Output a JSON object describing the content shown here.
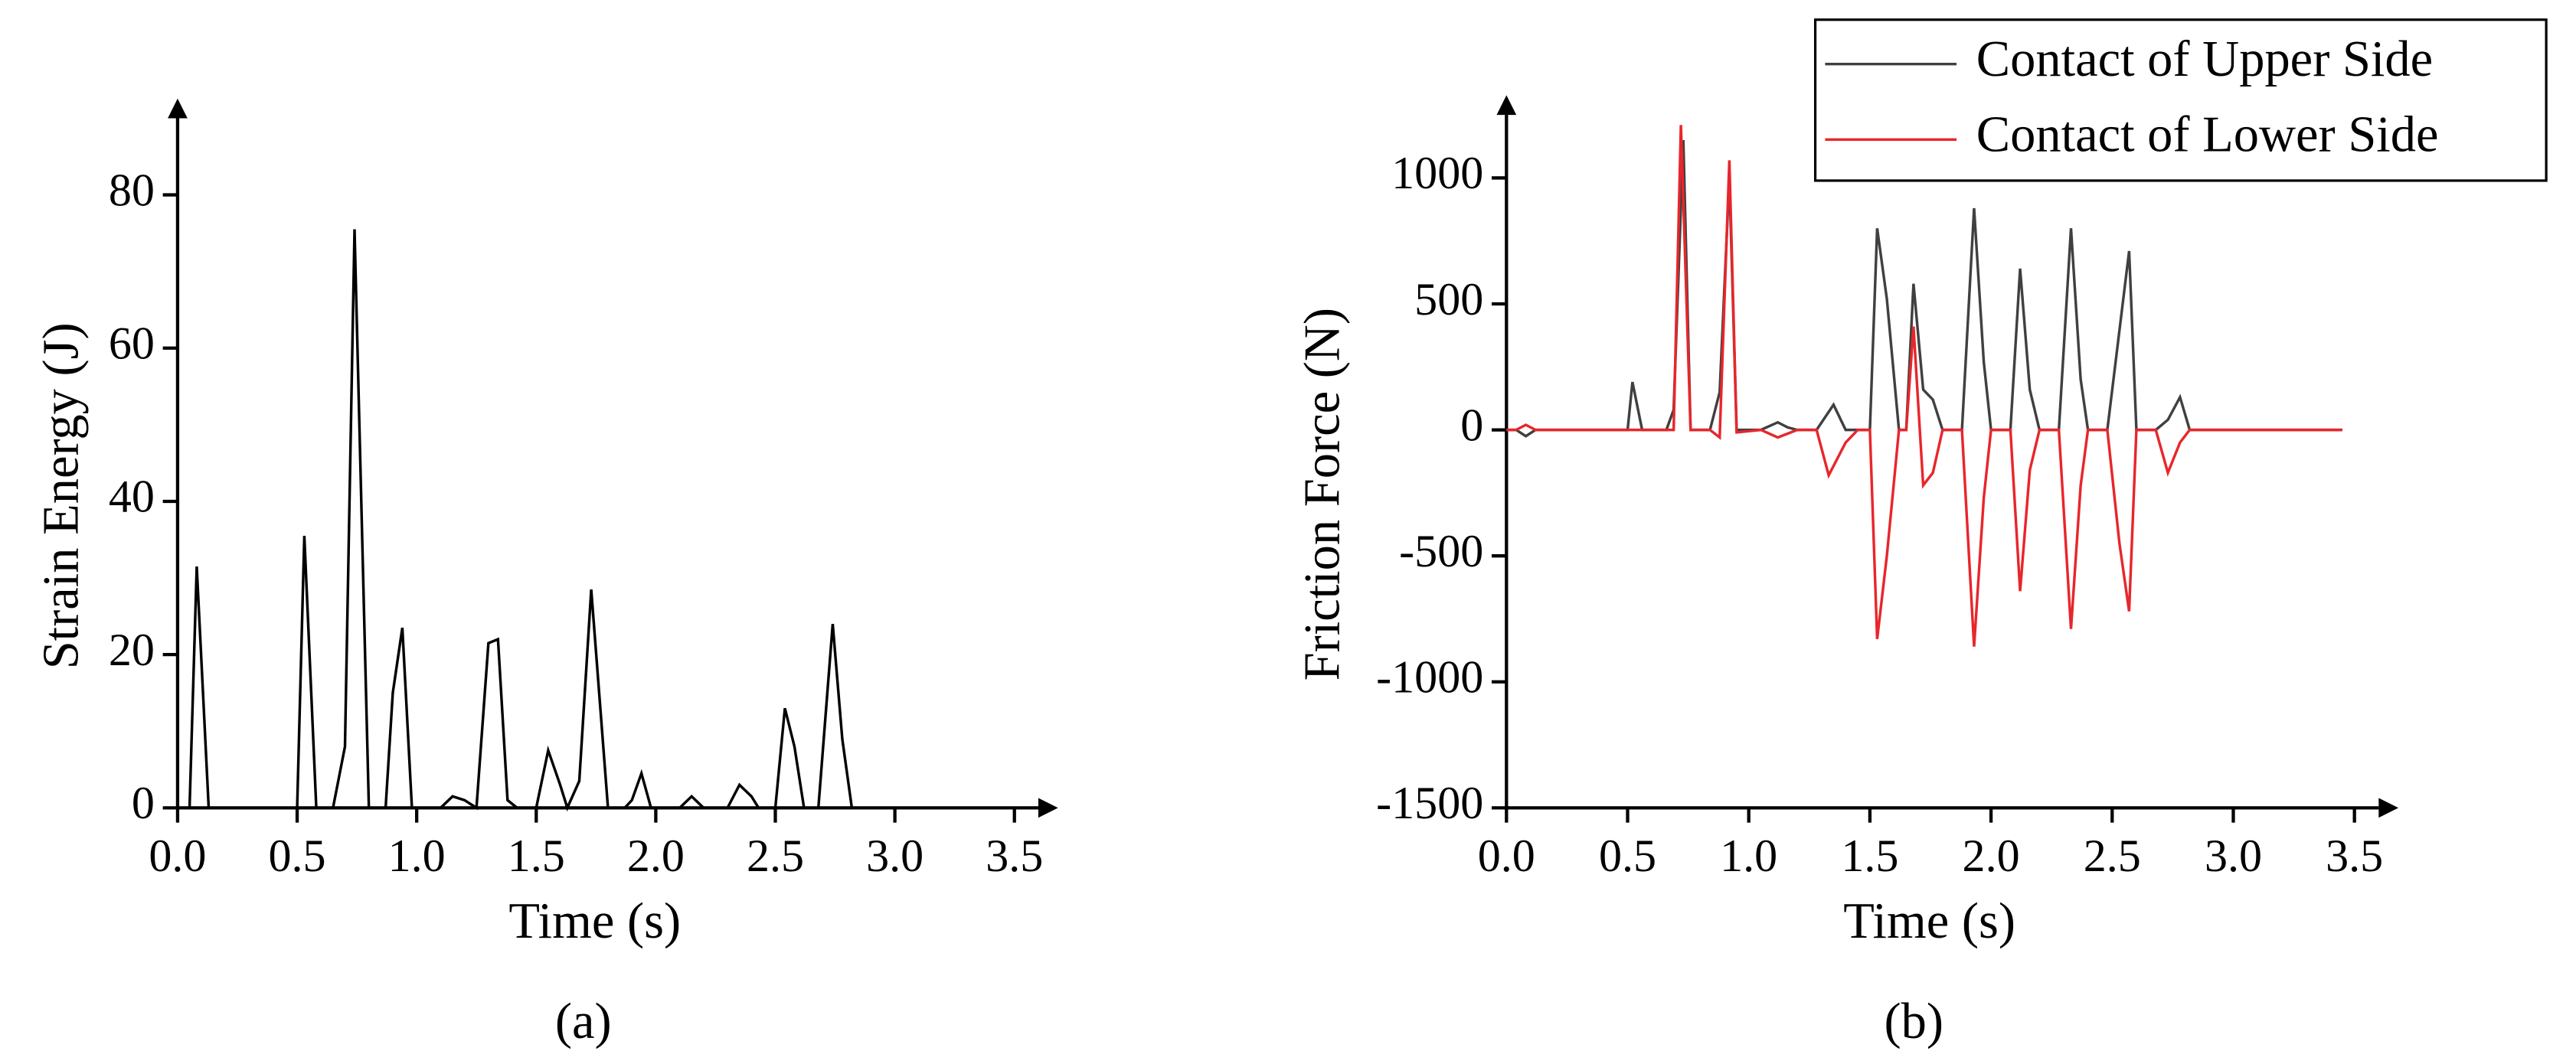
{
  "chart_data": [
    {
      "type": "line",
      "caption": "(a)",
      "x_label": "Time (s)",
      "y_label": "Strain Energy (J)",
      "xlim": [
        0,
        3.6
      ],
      "ylim": [
        0,
        90
      ],
      "xticks": [
        {
          "value": 0,
          "label": "0.0"
        },
        {
          "value": 0.5,
          "label": "0.5"
        },
        {
          "value": 1,
          "label": "1.0"
        },
        {
          "value": 1.5,
          "label": "1.5"
        },
        {
          "value": 2,
          "label": "2.0"
        },
        {
          "value": 2.5,
          "label": "2.5"
        },
        {
          "value": 3,
          "label": "3.0"
        },
        {
          "value": 3.5,
          "label": "3.5"
        }
      ],
      "yticks": [
        0,
        20,
        40,
        60,
        80
      ],
      "series": [
        {
          "color": "#000000",
          "x": [
            0,
            0.05,
            0.08,
            0.13,
            0.3,
            0.35,
            0.5,
            0.53,
            0.58,
            0.65,
            0.7,
            0.74,
            0.8,
            0.87,
            0.9,
            0.94,
            0.98,
            1.1,
            1.15,
            1.2,
            1.25,
            1.3,
            1.34,
            1.38,
            1.42,
            1.5,
            1.55,
            1.6,
            1.63,
            1.68,
            1.73,
            1.8,
            1.87,
            1.9,
            1.94,
            1.98,
            2.1,
            2.15,
            2.2,
            2.3,
            2.35,
            2.4,
            2.43,
            2.5,
            2.54,
            2.58,
            2.62,
            2.68,
            2.74,
            2.78,
            2.82,
            3.0
          ],
          "values": [
            0,
            0,
            31.5,
            0,
            0,
            0,
            0,
            35.5,
            0,
            0,
            8,
            75.5,
            0,
            0,
            15,
            23.5,
            0,
            0,
            1.5,
            1,
            0,
            21.5,
            22,
            1,
            0,
            0,
            7.5,
            3,
            0,
            3.5,
            28.5,
            0,
            0,
            1,
            4.5,
            0,
            0,
            1.5,
            0,
            0,
            3,
            1.5,
            0,
            0,
            13,
            8,
            0,
            0,
            24,
            9,
            0,
            0
          ]
        }
      ]
    },
    {
      "type": "line",
      "caption": "(b)",
      "x_label": "Time (s)",
      "y_label": "Friction Force (N)",
      "xlim": [
        0,
        3.6
      ],
      "ylim": [
        -1500,
        1250
      ],
      "xticks": [
        {
          "value": 0,
          "label": "0.0"
        },
        {
          "value": 0.5,
          "label": "0.5"
        },
        {
          "value": 1,
          "label": "1.0"
        },
        {
          "value": 1.5,
          "label": "1.5"
        },
        {
          "value": 2,
          "label": "2.0"
        },
        {
          "value": 2.5,
          "label": "2.5"
        },
        {
          "value": 3,
          "label": "3.0"
        },
        {
          "value": 3.5,
          "label": "3.5"
        }
      ],
      "yticks": [
        -1500,
        -1000,
        -500,
        0,
        500,
        1000
      ],
      "legend": "upper right",
      "series": [
        {
          "name": "Contact of Upper Side",
          "color": "#404040",
          "x": [
            0,
            0.04,
            0.08,
            0.12,
            0.5,
            0.52,
            0.56,
            0.66,
            0.69,
            0.73,
            0.76,
            0.84,
            0.88,
            0.92,
            0.95,
            1.05,
            1.12,
            1.16,
            1.2,
            1.28,
            1.35,
            1.4,
            1.5,
            1.53,
            1.57,
            1.62,
            1.65,
            1.68,
            1.72,
            1.76,
            1.8,
            1.88,
            1.93,
            1.97,
            2.0,
            2.08,
            2.12,
            2.16,
            2.2,
            2.28,
            2.33,
            2.37,
            2.4,
            2.48,
            2.57,
            2.6,
            2.68,
            2.73,
            2.78,
            2.82,
            3.45
          ],
          "values": [
            0,
            0,
            -25,
            0,
            0,
            190,
            0,
            0,
            80,
            1150,
            0,
            0,
            150,
            1000,
            0,
            0,
            30,
            10,
            0,
            0,
            100,
            0,
            0,
            800,
            520,
            0,
            0,
            580,
            160,
            120,
            0,
            0,
            880,
            270,
            0,
            0,
            640,
            160,
            0,
            0,
            800,
            200,
            0,
            0,
            710,
            0,
            0,
            40,
            130,
            0,
            0
          ]
        },
        {
          "name": "Contact of Lower Side",
          "color": "#e8262b",
          "x": [
            0,
            0.04,
            0.08,
            0.12,
            0.5,
            0.66,
            0.69,
            0.72,
            0.76,
            0.84,
            0.88,
            0.92,
            0.95,
            1.05,
            1.12,
            1.2,
            1.28,
            1.33,
            1.4,
            1.45,
            1.5,
            1.53,
            1.57,
            1.62,
            1.65,
            1.68,
            1.72,
            1.76,
            1.8,
            1.88,
            1.93,
            1.97,
            2.0,
            2.08,
            2.12,
            2.16,
            2.2,
            2.28,
            2.33,
            2.37,
            2.4,
            2.48,
            2.53,
            2.57,
            2.6,
            2.68,
            2.73,
            2.78,
            2.82,
            3.45
          ],
          "values": [
            0,
            0,
            20,
            0,
            0,
            0,
            0,
            1210,
            0,
            0,
            -30,
            1070,
            -10,
            0,
            -30,
            0,
            0,
            -180,
            -50,
            0,
            0,
            -830,
            -500,
            0,
            0,
            410,
            -220,
            -170,
            0,
            0,
            -860,
            -270,
            0,
            0,
            -640,
            -160,
            0,
            0,
            -790,
            -220,
            0,
            0,
            -450,
            -720,
            0,
            0,
            -170,
            -50,
            0,
            0
          ]
        }
      ]
    }
  ]
}
